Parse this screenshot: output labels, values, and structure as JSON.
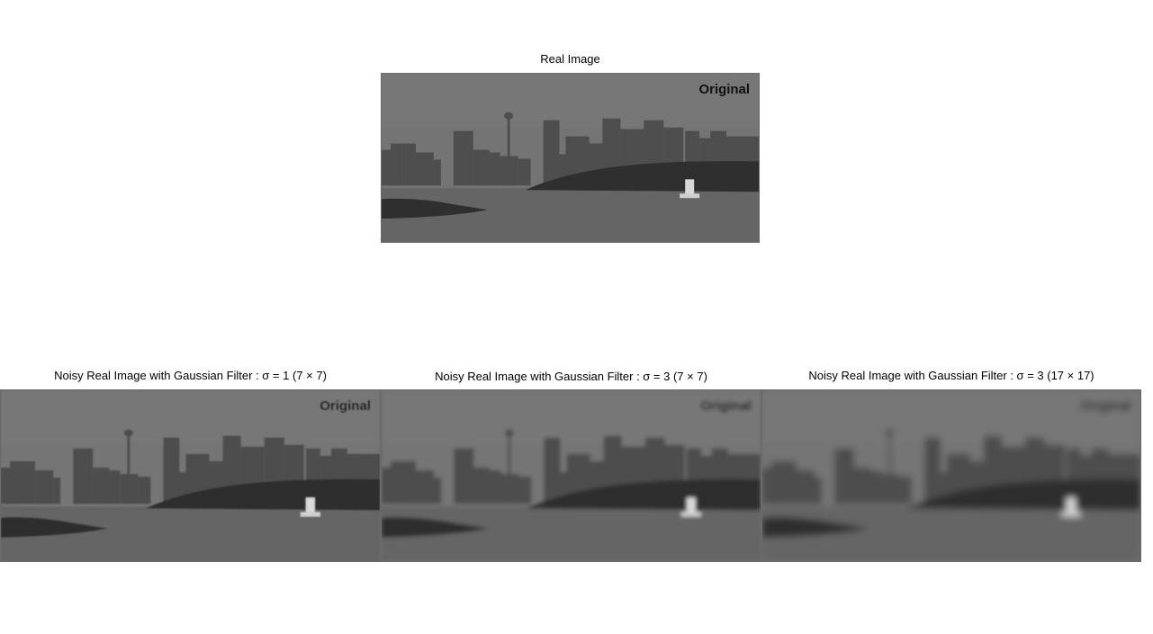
{
  "figure": {
    "top_title": "Real Image",
    "panels": [
      {
        "id": "original",
        "title": "Real Image",
        "overlay_text": "Original",
        "blur": 0
      },
      {
        "id": "sigma1_7",
        "title": "Noisy Real Image with Gaussian Filter : σ = 1 (7 × 7)",
        "overlay_text": "Original",
        "blur": 0.8
      },
      {
        "id": "sigma3_7",
        "title": "Noisy Real Image with Gaussian Filter : σ = 3 (7 × 7)",
        "overlay_text": "Original",
        "blur": 2.2
      },
      {
        "id": "sigma3_17",
        "title": "Noisy Real Image with Gaussian Filter : σ  = 3 (17 × 17)",
        "overlay_text": "Original",
        "blur": 3.6
      }
    ]
  },
  "colors": {
    "sky": "#747474",
    "water": "#656565",
    "buildings": "#4e4e4e",
    "island": "#2f2f2f",
    "border": "#6a6a6a"
  }
}
